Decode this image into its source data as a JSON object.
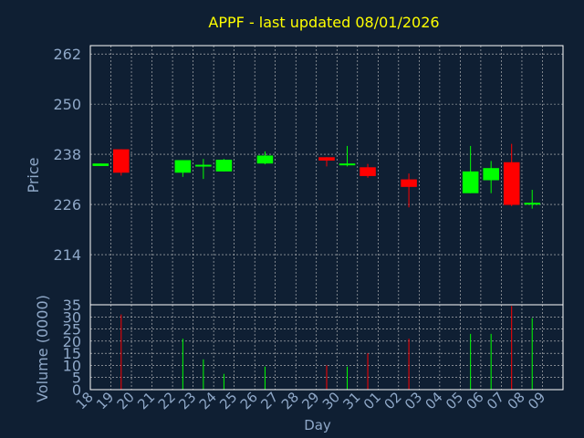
{
  "colors": {
    "background": "#0f1f33",
    "title": "#ffff00",
    "axis_text": "#8fa8c8",
    "frame": "#ffffff",
    "grid": "#c8c8c8",
    "up": "#00ff00",
    "down": "#ff0000"
  },
  "chart_data": [
    {
      "type": "candlestick",
      "title": "APPF - last updated 08/01/2026",
      "ylabel": "Price",
      "ylim": [
        202,
        264
      ],
      "yticks": [
        214,
        226,
        238,
        250,
        262
      ],
      "grid": true,
      "categories": [
        "18",
        "19",
        "20",
        "21",
        "22",
        "23",
        "24",
        "25",
        "26",
        "27",
        "28",
        "29",
        "30",
        "31",
        "01",
        "02",
        "03",
        "04",
        "05",
        "06",
        "07",
        "08",
        "09"
      ],
      "candles": [
        {
          "day": "18",
          "open": 235.2,
          "close": 235.8,
          "high": 235.8,
          "low": 235.2
        },
        {
          "day": "19",
          "open": 239.2,
          "close": 233.6,
          "high": 239.2,
          "low": 232.9
        },
        {
          "day": "22",
          "open": 233.6,
          "close": 236.6,
          "high": 236.6,
          "low": 232.6
        },
        {
          "day": "23",
          "open": 235.1,
          "close": 235.5,
          "high": 236.9,
          "low": 232.1
        },
        {
          "day": "24",
          "open": 233.9,
          "close": 236.7,
          "high": 236.9,
          "low": 233.9
        },
        {
          "day": "26",
          "open": 235.8,
          "close": 237.7,
          "high": 238.7,
          "low": 235.6
        },
        {
          "day": "29",
          "open": 237.3,
          "close": 236.5,
          "high": 237.3,
          "low": 235.1
        },
        {
          "day": "30",
          "open": 235.4,
          "close": 235.8,
          "high": 240.0,
          "low": 235.1
        },
        {
          "day": "31",
          "open": 234.9,
          "close": 232.8,
          "high": 235.7,
          "low": 232.4
        },
        {
          "day": "02",
          "open": 232.0,
          "close": 230.2,
          "high": 233.4,
          "low": 225.3
        },
        {
          "day": "05",
          "open": 228.7,
          "close": 233.9,
          "high": 240.0,
          "low": 228.7
        },
        {
          "day": "06",
          "open": 231.8,
          "close": 234.7,
          "high": 236.4,
          "low": 228.7
        },
        {
          "day": "07",
          "open": 236.1,
          "close": 225.9,
          "high": 240.5,
          "low": 225.6
        },
        {
          "day": "08",
          "open": 226.0,
          "close": 226.4,
          "high": 229.5,
          "low": 225.0
        }
      ]
    },
    {
      "type": "bar",
      "ylabel": "Volume (0000)",
      "xlabel": "Day",
      "ylim": [
        0,
        35
      ],
      "yticks": [
        0,
        5,
        10,
        15,
        20,
        25,
        30,
        35
      ],
      "grid": true,
      "categories": [
        "18",
        "19",
        "20",
        "21",
        "22",
        "23",
        "24",
        "25",
        "26",
        "27",
        "28",
        "29",
        "30",
        "31",
        "01",
        "02",
        "03",
        "04",
        "05",
        "06",
        "07",
        "08",
        "09"
      ],
      "bars": [
        {
          "day": "19",
          "value": 31,
          "direction": "down"
        },
        {
          "day": "22",
          "value": 21,
          "direction": "up"
        },
        {
          "day": "23",
          "value": 12.5,
          "direction": "up"
        },
        {
          "day": "24",
          "value": 6.5,
          "direction": "up"
        },
        {
          "day": "26",
          "value": 9.5,
          "direction": "up"
        },
        {
          "day": "29",
          "value": 10,
          "direction": "down"
        },
        {
          "day": "30",
          "value": 9.5,
          "direction": "up"
        },
        {
          "day": "31",
          "value": 15,
          "direction": "down"
        },
        {
          "day": "02",
          "value": 21,
          "direction": "down"
        },
        {
          "day": "05",
          "value": 23,
          "direction": "up"
        },
        {
          "day": "06",
          "value": 23,
          "direction": "up"
        },
        {
          "day": "07",
          "value": 34.5,
          "direction": "down"
        },
        {
          "day": "08",
          "value": 29.5,
          "direction": "up"
        }
      ]
    }
  ]
}
